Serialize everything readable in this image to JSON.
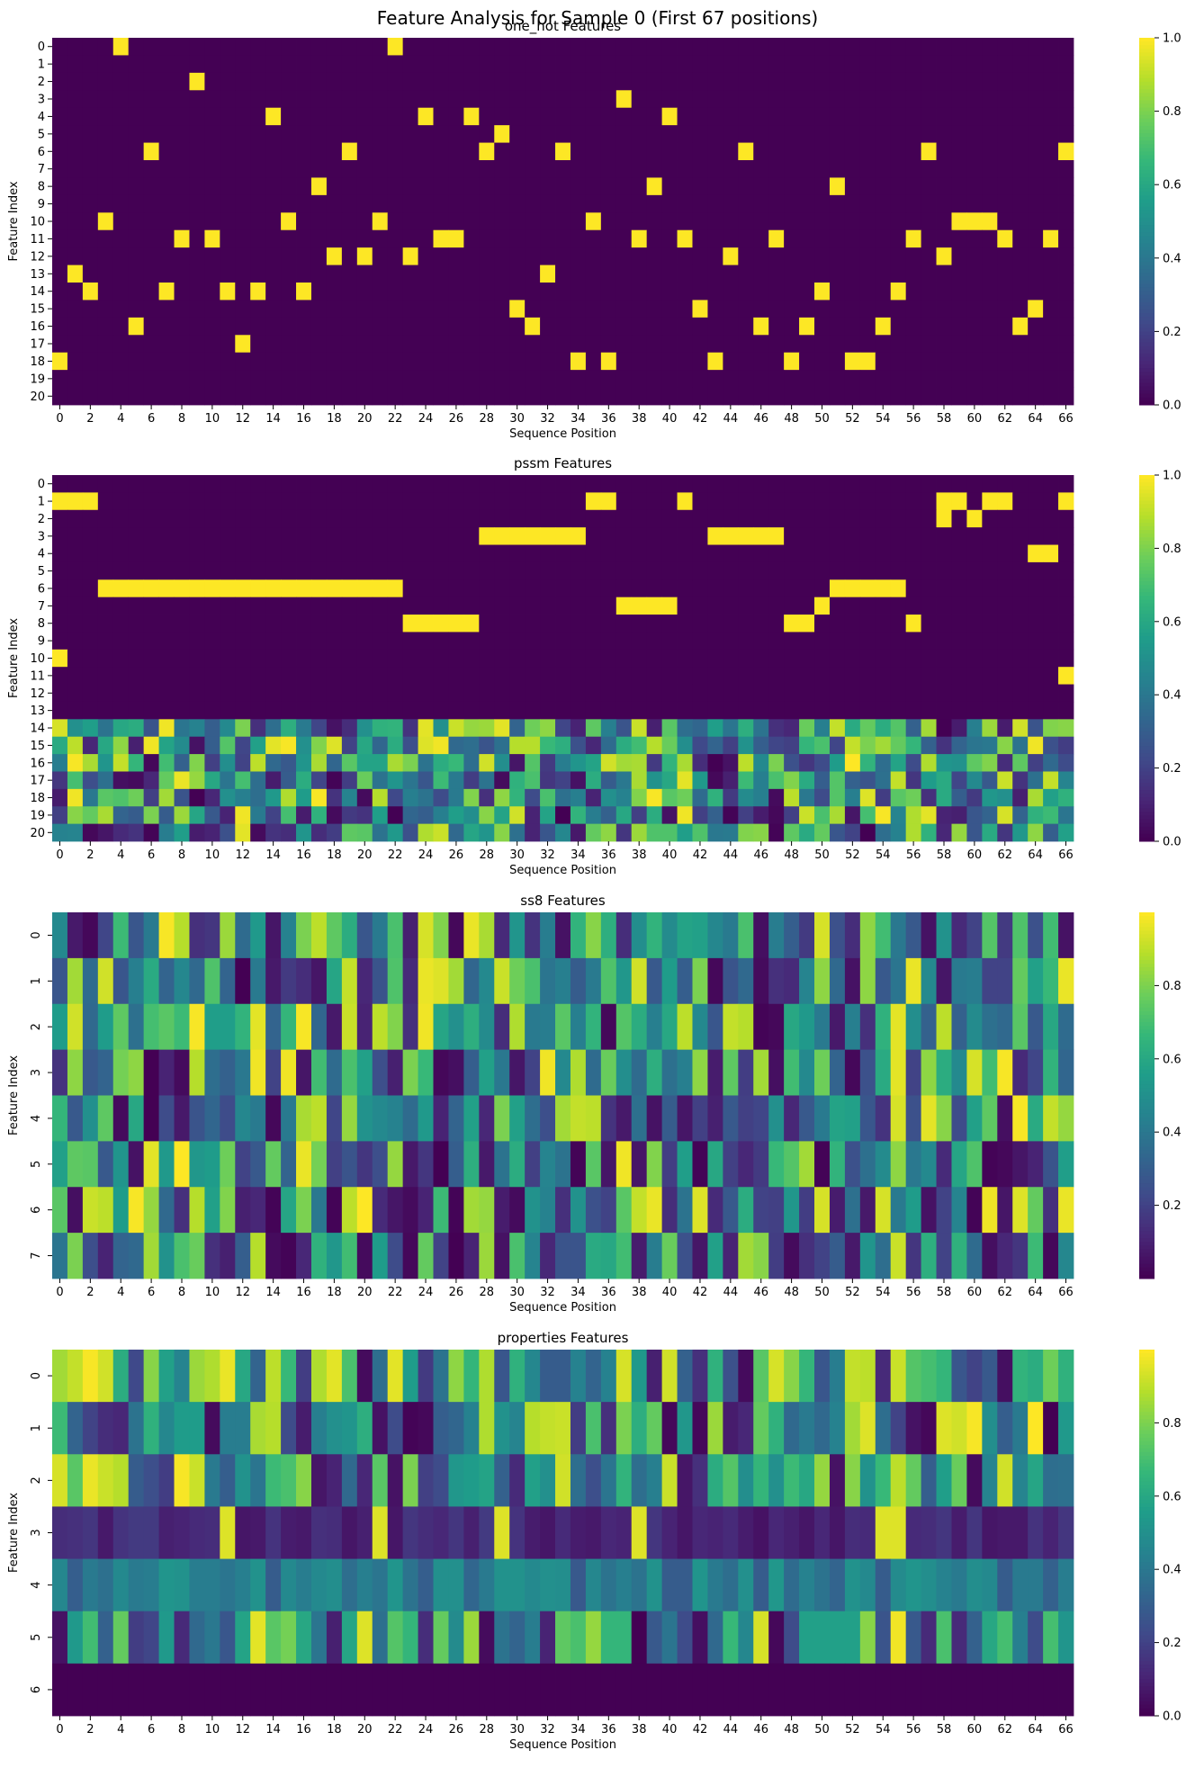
{
  "figure": {
    "suptitle": "Feature Analysis for Sample 0 (First 67 positions)"
  },
  "colormap": {
    "name": "viridis",
    "stops": [
      "#440154",
      "#482777",
      "#3f4a8a",
      "#31678e",
      "#26838f",
      "#1f9d8a",
      "#35b779",
      "#6cce5a",
      "#b5de2b",
      "#fde725"
    ]
  },
  "chart_data": [
    {
      "type": "heatmap",
      "title": "one_hot Features",
      "xlabel": "Sequence Position",
      "ylabel": "Feature Index",
      "n_positions": 67,
      "rows": [
        "0",
        "1",
        "2",
        "3",
        "4",
        "5",
        "6",
        "7",
        "8",
        "9",
        "10",
        "11",
        "12",
        "13",
        "14",
        "15",
        "16",
        "17",
        "18",
        "19",
        "20"
      ],
      "x_ticks": [
        "0",
        "2",
        "4",
        "6",
        "8",
        "10",
        "12",
        "14",
        "16",
        "18",
        "20",
        "22",
        "24",
        "26",
        "28",
        "30",
        "32",
        "34",
        "36",
        "38",
        "40",
        "42",
        "44",
        "46",
        "48",
        "50",
        "52",
        "54",
        "56",
        "58",
        "60",
        "62",
        "64",
        "66"
      ],
      "colorbar": {
        "vmin": 0,
        "vmax": 1,
        "ticks": [
          "0.0",
          "0.2",
          "0.4",
          "0.6",
          "0.8",
          "1.0"
        ]
      },
      "hot_rows": [
        18,
        13,
        14,
        10,
        0,
        16,
        6,
        14,
        11,
        2,
        11,
        14,
        17,
        14,
        4,
        10,
        14,
        8,
        12,
        6,
        12,
        10,
        0,
        12,
        4,
        11,
        11,
        4,
        6,
        5,
        15,
        16,
        13,
        6,
        18,
        10,
        18,
        3,
        11,
        8,
        4,
        11,
        15,
        18,
        12,
        6,
        16,
        11,
        18,
        16,
        14,
        8,
        18,
        18,
        16,
        14,
        11,
        6,
        12,
        10,
        10,
        10,
        11,
        16,
        15,
        11,
        6
      ],
      "values": []
    },
    {
      "type": "heatmap",
      "title": "pssm Features",
      "xlabel": "Sequence Position",
      "ylabel": "Feature Index",
      "n_positions": 67,
      "rows": [
        "0",
        "1",
        "2",
        "3",
        "4",
        "5",
        "6",
        "7",
        "8",
        "9",
        "10",
        "11",
        "12",
        "13",
        "14",
        "15",
        "16",
        "17",
        "18",
        "19",
        "20"
      ],
      "x_ticks": [
        "0",
        "2",
        "4",
        "6",
        "8",
        "10",
        "12",
        "14",
        "16",
        "18",
        "20",
        "22",
        "24",
        "26",
        "28",
        "30",
        "32",
        "34",
        "36",
        "38",
        "40",
        "42",
        "44",
        "46",
        "48",
        "50",
        "52",
        "54",
        "56",
        "58",
        "60",
        "62",
        "64",
        "66"
      ],
      "colorbar": {
        "vmin": 0,
        "vmax": 1,
        "ticks": [
          "0.0",
          "0.2",
          "0.4",
          "0.6",
          "0.8",
          "1.0"
        ]
      },
      "binary_rows": 14,
      "hot_rows_first14": [
        [
          1,
          10
        ],
        [
          1
        ],
        [
          1
        ],
        [
          6
        ],
        [
          6
        ],
        [
          6
        ],
        [
          6
        ],
        [
          6
        ],
        [
          6
        ],
        [
          6
        ],
        [
          6
        ],
        [
          6
        ],
        [
          6
        ],
        [
          6
        ],
        [
          6
        ],
        [
          6
        ],
        [
          6
        ],
        [
          6
        ],
        [
          6
        ],
        [
          6
        ],
        [
          6
        ],
        [
          6
        ],
        [
          6
        ],
        [
          8
        ],
        [
          8
        ],
        [
          8
        ],
        [
          8
        ],
        [
          8
        ],
        [
          3
        ],
        [
          3
        ],
        [
          3
        ],
        [
          3
        ],
        [
          3
        ],
        [
          3
        ],
        [
          3
        ],
        [
          1
        ],
        [
          1
        ],
        [
          7
        ],
        [
          7
        ],
        [
          7
        ],
        [
          7
        ],
        [
          1
        ],
        [],
        [
          3
        ],
        [
          3
        ],
        [
          3
        ],
        [
          3
        ],
        [
          3
        ],
        [
          8
        ],
        [
          8
        ],
        [
          7
        ],
        [
          6
        ],
        [
          6
        ],
        [
          6
        ],
        [
          6
        ],
        [
          6
        ],
        [
          8
        ],
        [],
        [
          1,
          2
        ],
        [
          1
        ],
        [
          2
        ],
        [
          1
        ],
        [
          1
        ],
        [],
        [
          4
        ],
        [
          4
        ],
        [
          1,
          11
        ]
      ],
      "values": []
    },
    {
      "type": "heatmap",
      "title": "ss8 Features",
      "xlabel": "Sequence Position",
      "ylabel": "Feature Index",
      "n_positions": 67,
      "rows": [
        "0",
        "1",
        "2",
        "3",
        "4",
        "5",
        "6",
        "7"
      ],
      "x_ticks": [
        "0",
        "2",
        "4",
        "6",
        "8",
        "10",
        "12",
        "14",
        "16",
        "18",
        "20",
        "22",
        "24",
        "26",
        "28",
        "30",
        "32",
        "34",
        "36",
        "38",
        "40",
        "42",
        "44",
        "46",
        "48",
        "50",
        "52",
        "54",
        "56",
        "58",
        "60",
        "62",
        "64",
        "66"
      ],
      "colorbar": {
        "vmin": 0,
        "vmax": 1,
        "ticks": [
          "0.2",
          "0.4",
          "0.6",
          "0.8"
        ]
      },
      "values": []
    },
    {
      "type": "heatmap",
      "title": "properties Features",
      "xlabel": "Sequence Position",
      "ylabel": "Feature Index",
      "n_positions": 67,
      "rows": [
        "0",
        "1",
        "2",
        "3",
        "4",
        "5",
        "6"
      ],
      "x_ticks": [
        "0",
        "2",
        "4",
        "6",
        "8",
        "10",
        "12",
        "14",
        "16",
        "18",
        "20",
        "22",
        "24",
        "26",
        "28",
        "30",
        "32",
        "34",
        "36",
        "38",
        "40",
        "42",
        "44",
        "46",
        "48",
        "50",
        "52",
        "54",
        "56",
        "58",
        "60",
        "62",
        "64",
        "66"
      ],
      "colorbar": {
        "vmin": 0,
        "vmax": 1,
        "ticks": [
          "0.0",
          "0.2",
          "0.4",
          "0.6",
          "0.8"
        ]
      },
      "values": []
    }
  ]
}
